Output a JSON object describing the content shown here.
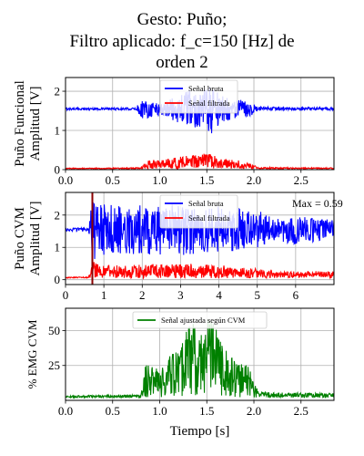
{
  "figure": {
    "title_lines": [
      "Gesto: Puño;",
      "Filtro aplicado: f_c=150 [Hz] de",
      "orden 2"
    ],
    "colors": {
      "raw": "#0000ff",
      "filtered": "#ff0000",
      "emg": "#008000",
      "marker": "#8b0000",
      "grid": "#b0b0b0"
    }
  },
  "chart_data": [
    {
      "type": "line",
      "panel": "funcional",
      "ylabel_lines": [
        "Puño Funcional",
        "Amplitud [V]"
      ],
      "xlim": [
        0,
        2.85
      ],
      "ylim": [
        0,
        2.35
      ],
      "xticks": [
        0,
        0.5,
        1,
        1.5,
        2,
        2.5
      ],
      "xtick_labels": [
        "0.0",
        "0.5",
        "1.0",
        "1.5",
        "2.0",
        "2.5"
      ],
      "yticks": [
        0,
        1,
        2
      ],
      "ytick_labels": [
        "0",
        "1",
        "2"
      ],
      "grid": true,
      "legend": "top-center",
      "series": [
        {
          "name": "Señal bruta",
          "color": "#0000ff",
          "baseline": 1.55,
          "envelope": [
            [
              0,
              0.03
            ],
            [
              0.75,
              0.03
            ],
            [
              0.8,
              0.25
            ],
            [
              1.0,
              0.2
            ],
            [
              1.2,
              0.35
            ],
            [
              1.3,
              0.5
            ],
            [
              1.45,
              0.45
            ],
            [
              1.55,
              0.65
            ],
            [
              1.65,
              0.35
            ],
            [
              1.8,
              0.25
            ],
            [
              1.95,
              0.2
            ],
            [
              2.05,
              0.05
            ],
            [
              2.85,
              0.04
            ]
          ]
        },
        {
          "name": "Señal filtrada",
          "color": "#ff0000",
          "baseline": 0.02,
          "envelope": [
            [
              0,
              0.02
            ],
            [
              0.8,
              0.03
            ],
            [
              0.85,
              0.2
            ],
            [
              1.2,
              0.3
            ],
            [
              1.5,
              0.4
            ],
            [
              1.65,
              0.28
            ],
            [
              1.9,
              0.2
            ],
            [
              2.05,
              0.04
            ],
            [
              2.85,
              0.03
            ]
          ]
        }
      ]
    },
    {
      "type": "line",
      "panel": "cvm",
      "ylabel_lines": [
        "Puño CVM",
        "Amplitud [V]"
      ],
      "xlim": [
        0,
        7.0
      ],
      "ylim": [
        -0.15,
        2.7
      ],
      "xticks": [
        0,
        1,
        2,
        3,
        4,
        5,
        6
      ],
      "xtick_labels": [
        "0",
        "1",
        "2",
        "3",
        "4",
        "5",
        "6"
      ],
      "yticks": [
        0,
        1,
        2
      ],
      "ytick_labels": [
        "0",
        "1",
        "2"
      ],
      "grid": true,
      "legend": "top-center",
      "annotation": "Max = 0.59",
      "vline_x": 0.7,
      "series": [
        {
          "name": "Señal bruta",
          "color": "#0000ff",
          "baseline": 1.55,
          "envelope": [
            [
              0,
              0.05
            ],
            [
              0.6,
              0.06
            ],
            [
              0.7,
              1.0
            ],
            [
              0.8,
              0.85
            ],
            [
              1.5,
              0.75
            ],
            [
              3.0,
              0.8
            ],
            [
              4.2,
              0.7
            ],
            [
              5.0,
              0.6
            ],
            [
              5.5,
              0.35
            ],
            [
              6.0,
              0.45
            ],
            [
              7.0,
              0.3
            ]
          ]
        },
        {
          "name": "Señal filtrada",
          "color": "#ff0000",
          "baseline": 0.05,
          "envelope": [
            [
              0,
              0.03
            ],
            [
              0.6,
              0.04
            ],
            [
              0.7,
              0.55
            ],
            [
              1.0,
              0.4
            ],
            [
              3.0,
              0.45
            ],
            [
              4.5,
              0.38
            ],
            [
              5.5,
              0.2
            ],
            [
              7.0,
              0.22
            ]
          ]
        }
      ]
    },
    {
      "type": "line",
      "panel": "emg",
      "ylabel_lines": [
        "% EMG CVM"
      ],
      "xlabel": "Tiempo [s]",
      "xlim": [
        0,
        2.85
      ],
      "ylim": [
        0,
        66
      ],
      "xticks": [
        0,
        0.5,
        1,
        1.5,
        2,
        2.5
      ],
      "xtick_labels": [
        "0.0",
        "0.5",
        "1.0",
        "1.5",
        "2.0",
        "2.5"
      ],
      "yticks": [
        25,
        50
      ],
      "ytick_labels": [
        "25",
        "50"
      ],
      "grid": true,
      "legend": "top-center",
      "series": [
        {
          "name": "Señal ajustada según CVM",
          "color": "#008000",
          "baseline": 2,
          "envelope": [
            [
              0,
              1.5
            ],
            [
              0.8,
              2
            ],
            [
              0.85,
              25
            ],
            [
              1.0,
              20
            ],
            [
              1.2,
              38
            ],
            [
              1.3,
              55
            ],
            [
              1.45,
              50
            ],
            [
              1.55,
              62
            ],
            [
              1.65,
              40
            ],
            [
              1.8,
              28
            ],
            [
              1.95,
              22
            ],
            [
              2.05,
              4
            ],
            [
              2.85,
              3
            ]
          ]
        }
      ]
    }
  ]
}
